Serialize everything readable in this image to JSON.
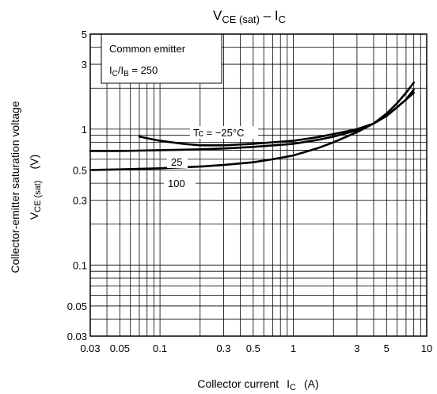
{
  "chart_data": {
    "type": "line",
    "title": {
      "main": "V",
      "main_sub": "CE (sat)",
      "dash": " – I",
      "dash_sub": "C"
    },
    "xlabel": {
      "text": "Collector current",
      "symbol": "I",
      "symbol_sub": "C",
      "unit": "(A)"
    },
    "ylabel": {
      "line1": "Collector-emitter saturation voltage",
      "symbol": "V",
      "symbol_sub": "CE (sat)",
      "unit": "(V)"
    },
    "x_scale": "log",
    "y_scale": "log",
    "xlim": [
      0.03,
      10
    ],
    "ylim": [
      0.03,
      5
    ],
    "grid": true,
    "x_ticks": [
      {
        "value": 0.03,
        "label": "0.03"
      },
      {
        "value": 0.05,
        "label": "0.05"
      },
      {
        "value": 0.1,
        "label": "0.1"
      },
      {
        "value": 0.3,
        "label": "0.3"
      },
      {
        "value": 0.5,
        "label": "0.5"
      },
      {
        "value": 1,
        "label": "1"
      },
      {
        "value": 3,
        "label": "3"
      },
      {
        "value": 5,
        "label": "5"
      },
      {
        "value": 10,
        "label": "10"
      }
    ],
    "y_ticks": [
      {
        "value": 0.03,
        "label": "0.03"
      },
      {
        "value": 0.05,
        "label": "0.05"
      },
      {
        "value": 0.1,
        "label": "0.1"
      },
      {
        "value": 0.3,
        "label": "0.3"
      },
      {
        "value": 0.5,
        "label": "0.5"
      },
      {
        "value": 1,
        "label": "1"
      },
      {
        "value": 3,
        "label": "3"
      },
      {
        "value": 5,
        "label": "5"
      }
    ],
    "legend_box": {
      "line1": "Common emitter",
      "line2_main": "I",
      "line2_sub1": "C",
      "line2_mid": "/I",
      "line2_sub2": "B",
      "line2_tail": " = 250",
      "placement": "top-left"
    },
    "series": [
      {
        "name": "Tc = −25°C",
        "x": [
          0.07,
          0.1,
          0.15,
          0.2,
          0.3,
          0.5,
          0.7,
          1,
          1.5,
          2,
          3,
          4,
          5,
          6,
          7,
          8
        ],
        "y": [
          0.88,
          0.82,
          0.78,
          0.76,
          0.76,
          0.78,
          0.8,
          0.82,
          0.87,
          0.92,
          1.0,
          1.1,
          1.25,
          1.45,
          1.65,
          1.85
        ]
      },
      {
        "name": "25",
        "x": [
          0.03,
          0.05,
          0.1,
          0.2,
          0.3,
          0.5,
          1,
          1.5,
          2,
          3,
          4,
          5,
          6,
          7,
          8
        ],
        "y": [
          0.69,
          0.69,
          0.7,
          0.71,
          0.72,
          0.74,
          0.78,
          0.83,
          0.88,
          0.98,
          1.1,
          1.25,
          1.45,
          1.65,
          1.95
        ]
      },
      {
        "name": "100",
        "x": [
          0.03,
          0.05,
          0.1,
          0.2,
          0.3,
          0.5,
          0.7,
          1,
          1.5,
          2,
          3,
          4,
          5,
          6,
          7,
          8
        ],
        "y": [
          0.5,
          0.505,
          0.515,
          0.53,
          0.545,
          0.57,
          0.6,
          0.64,
          0.72,
          0.8,
          0.95,
          1.1,
          1.3,
          1.55,
          1.85,
          2.2
        ]
      }
    ],
    "curve_labels": [
      "Tc = −25°C",
      "25",
      "100"
    ]
  }
}
